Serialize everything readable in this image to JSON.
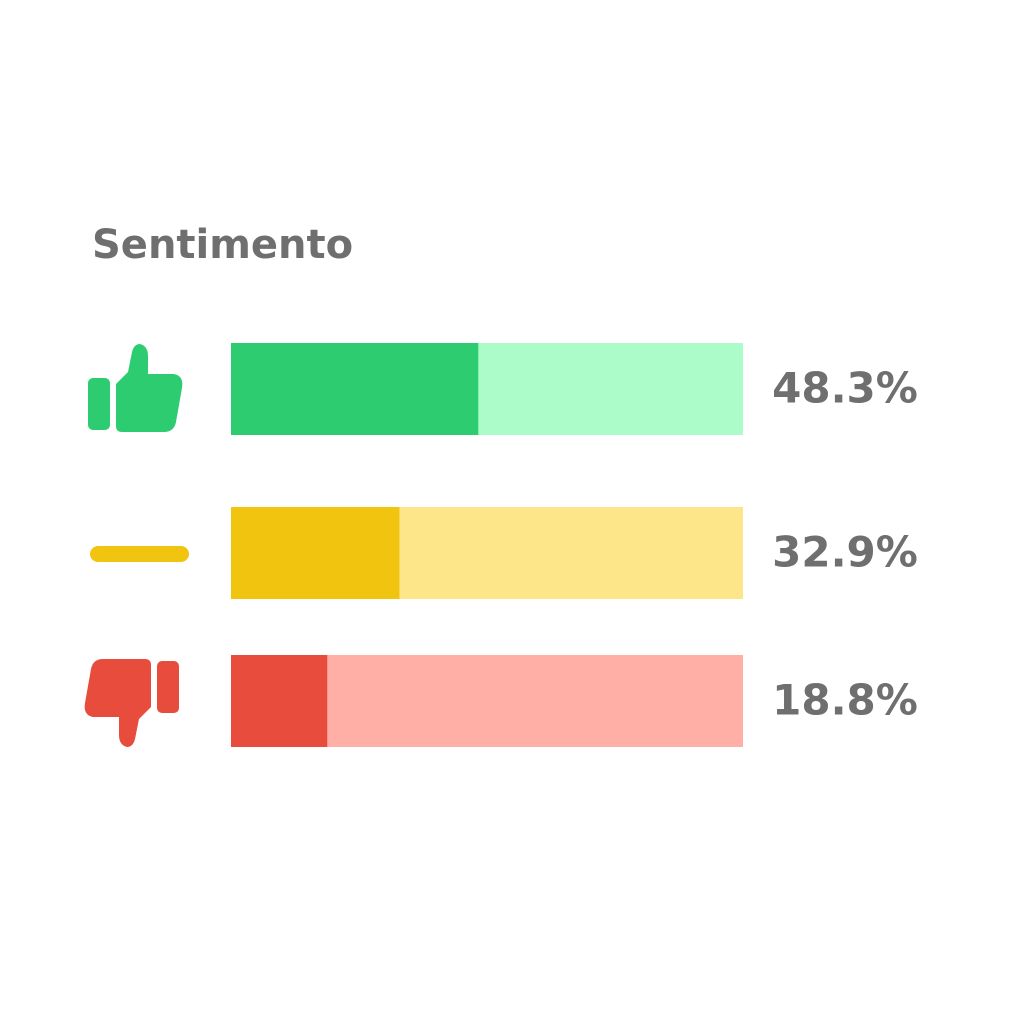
{
  "chart_data": {
    "type": "progress-bar",
    "title": "Sentimento",
    "values": [
      48.3,
      32.9,
      18.8
    ],
    "value_labels": [
      "48.3%",
      "32.9%",
      "18.8%"
    ],
    "colors": [
      "#2ecc71",
      "#f1c40f",
      "#e74c3c"
    ],
    "track_colors": [
      "#abfcc9",
      "#fde68a",
      "#ffafa6"
    ],
    "xlim": [
      0,
      100
    ]
  }
}
